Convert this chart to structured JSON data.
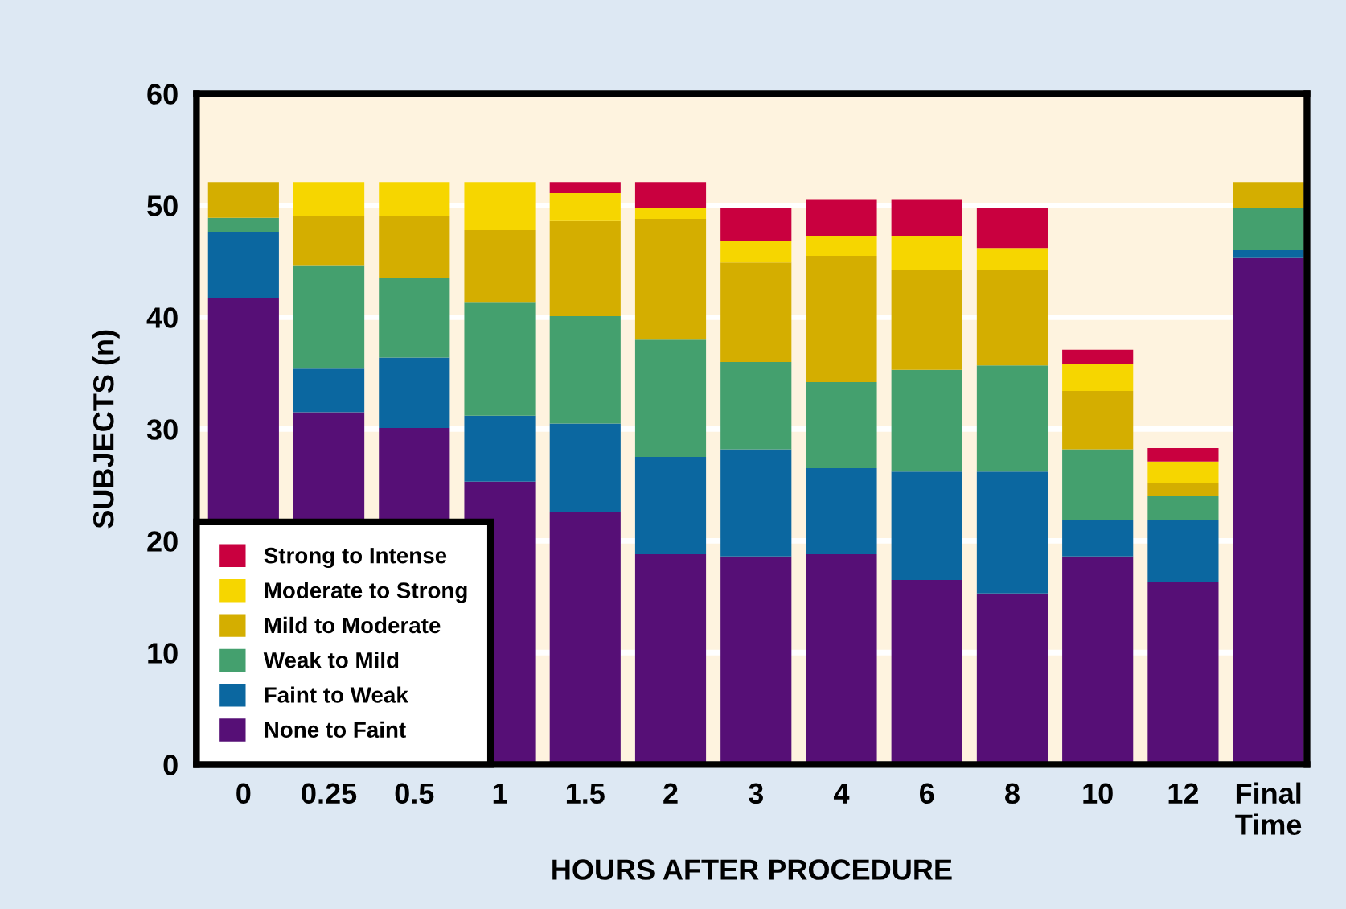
{
  "chart_data": {
    "type": "bar",
    "stacked": true,
    "xlabel": "HOURS AFTER PROCEDURE",
    "ylabel": "SUBJECTS (n)",
    "categories": [
      "0",
      "0.25",
      "0.5",
      "1",
      "1.5",
      "2",
      "3",
      "4",
      "6",
      "8",
      "10",
      "12",
      "Final\nTime"
    ],
    "ylim": [
      0,
      60
    ],
    "yticks": [
      0,
      10,
      20,
      30,
      40,
      50,
      60
    ],
    "grid": "y",
    "legend": "bottom left",
    "series": [
      {
        "name": "None to Faint",
        "color": "#560f76",
        "values": [
          41.7,
          31.5,
          30.1,
          25.3,
          22.6,
          18.8,
          18.6,
          18.8,
          16.5,
          15.3,
          18.6,
          16.3,
          45.3
        ]
      },
      {
        "name": "Faint to Weak",
        "color": "#0b67a0",
        "values": [
          5.9,
          3.9,
          6.3,
          5.9,
          7.9,
          8.7,
          9.6,
          7.7,
          9.7,
          10.9,
          3.3,
          5.6,
          0.7
        ]
      },
      {
        "name": "Weak to Mild",
        "color": "#44a06e",
        "values": [
          1.3,
          9.2,
          7.1,
          10.1,
          9.6,
          10.5,
          7.8,
          7.7,
          9.1,
          9.5,
          6.3,
          2.1,
          3.8
        ]
      },
      {
        "name": "Mild to Moderate",
        "color": "#d4ae00",
        "values": [
          3.2,
          4.5,
          5.6,
          6.5,
          8.5,
          10.8,
          8.9,
          11.3,
          8.9,
          8.5,
          5.2,
          1.2,
          2.3
        ]
      },
      {
        "name": "Moderate to Strong",
        "color": "#f6d600",
        "values": [
          0,
          3.0,
          3.0,
          4.3,
          2.5,
          1.0,
          1.9,
          1.8,
          3.1,
          2.0,
          2.4,
          1.9,
          0
        ]
      },
      {
        "name": "Strong to Intense",
        "color": "#c9003f",
        "values": [
          0,
          0,
          0,
          0,
          1.0,
          2.3,
          3.0,
          3.2,
          3.2,
          3.6,
          1.3,
          1.2,
          0
        ]
      }
    ]
  }
}
